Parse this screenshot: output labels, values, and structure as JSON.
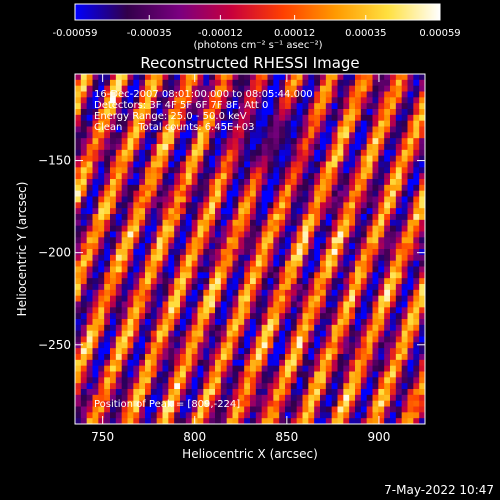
{
  "colorbar": {
    "tick_labels": [
      "-0.00059",
      "-0.00035",
      "-0.00012",
      "0.00012",
      "0.00035",
      "0.00059"
    ],
    "tick_values": [
      -0.00059,
      -0.00035,
      -0.00012,
      0.00012,
      0.00035,
      0.00059
    ],
    "range": [
      -0.00059,
      0.00059
    ],
    "unit_label": "(photons cm⁻² s⁻¹ asec⁻²)",
    "colormap": [
      "#0000ff",
      "#32004a",
      "#7a0080",
      "#c8003c",
      "#ff4000",
      "#ff9a00",
      "#ffe040",
      "#ffffff"
    ]
  },
  "title": "Reconstructed RHESSI Image",
  "info_lines": [
    "16-Dec-2007 08:01:00.000 to 08:05:44.000",
    "Detectors: 3F 4F 5F 6F 7F 8F, Att 0",
    "Energy Range: 25.0 - 50.0 keV",
    "Clean     Total counts: 6.45E+03"
  ],
  "peak_label": "Position of Peak = [809,-224]",
  "timestamp": "7-May-2022 10:47",
  "chart_data": {
    "type": "heatmap",
    "title": "Reconstructed RHESSI Image",
    "xlabel": "Heliocentric X (arcsec)",
    "ylabel": "Heliocentric Y (arcsec)",
    "xlim": [
      735,
      925
    ],
    "ylim": [
      -293,
      -103
    ],
    "x_ticks": [
      750,
      800,
      850,
      900
    ],
    "x_tick_labels": [
      "750",
      "800",
      "850",
      "900"
    ],
    "y_ticks": [
      -150,
      -200,
      -250
    ],
    "y_tick_labels": [
      "−150",
      "−200",
      "−250"
    ],
    "value_range": [
      -0.00059,
      0.00059
    ],
    "peak_position": [
      809,
      -224
    ],
    "pattern": {
      "description_free_params": true,
      "fringe_slope": 2.6,
      "fringe_period_arcsec": 19,
      "grid_cells": [
        60,
        60
      ]
    }
  }
}
